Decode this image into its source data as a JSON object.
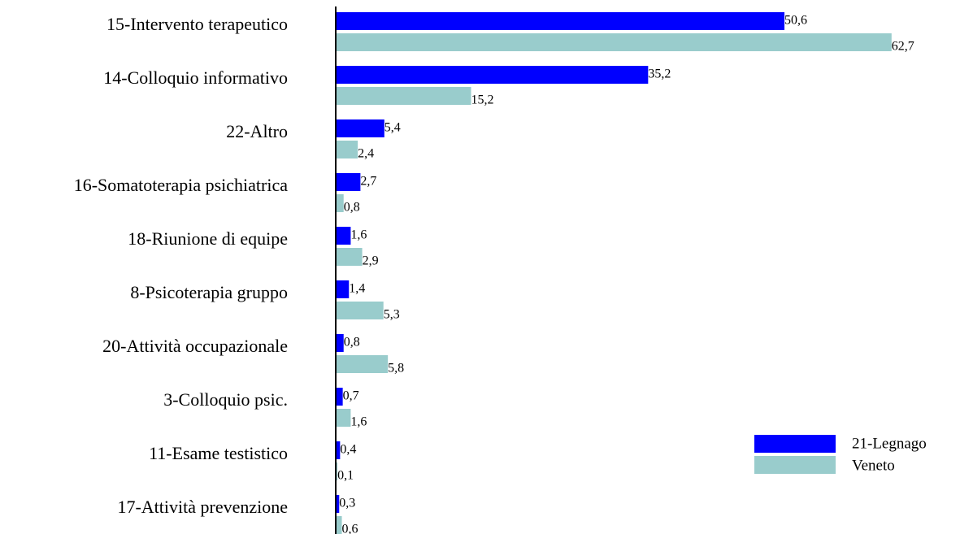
{
  "chart_data": {
    "type": "hbar",
    "categories": [
      "15-Intervento terapeutico",
      "14-Colloquio informativo",
      "22-Altro",
      "16-Somatoterapia psichiatrica",
      "18-Riunione di equipe",
      "8-Psicoterapia gruppo",
      "20-Attività occupazionale",
      "3-Colloquio psic.",
      "11-Esame testistico",
      "17-Attività prevenzione"
    ],
    "series": [
      {
        "name": "21-Legnago",
        "color": "#0000ff",
        "values": [
          50.6,
          35.2,
          5.4,
          2.7,
          1.6,
          1.4,
          0.8,
          0.7,
          0.4,
          0.3
        ],
        "value_labels": [
          "50,6",
          "35,2",
          "5,4",
          "2,7",
          "1,6",
          "1,4",
          "0,8",
          "0,7",
          "0,4",
          "0,3"
        ]
      },
      {
        "name": "Veneto",
        "color": "#99cccc",
        "values": [
          62.7,
          15.2,
          2.4,
          0.8,
          2.9,
          5.3,
          5.8,
          1.6,
          0.1,
          0.6
        ],
        "value_labels": [
          "62,7",
          "15,2",
          "2,4",
          "0,8",
          "2,9",
          "5,3",
          "5,8",
          "1,6",
          "0,1",
          "0,6"
        ]
      }
    ],
    "legend": "lower right"
  }
}
